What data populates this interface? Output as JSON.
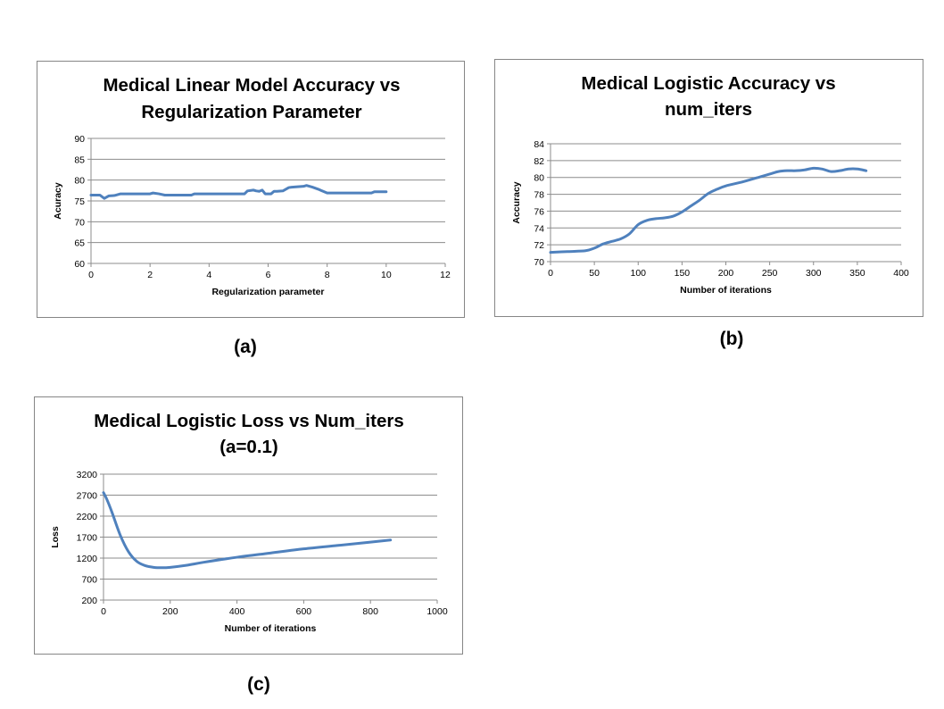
{
  "captions": [
    "(a)",
    "(b)",
    "(c)"
  ],
  "chart_data": [
    {
      "type": "line",
      "title_lines": [
        "Medical Linear Model Accuracy vs",
        "Regularization Parameter"
      ],
      "xlabel": "Regularization  parameter",
      "ylabel": "Acuracy",
      "xlim": [
        0,
        12
      ],
      "ylim": [
        60,
        90
      ],
      "xticks": [
        0,
        2,
        4,
        6,
        8,
        10,
        12
      ],
      "yticks": [
        60,
        65,
        70,
        75,
        80,
        85,
        90
      ],
      "grid": true,
      "legend": "none",
      "color": "#4f81bd",
      "series": [
        {
          "x": [
            0,
            0.3,
            0.45,
            0.6,
            0.8,
            1.0,
            1.5,
            2.0,
            2.1,
            2.3,
            2.5,
            3.0,
            3.4,
            3.5,
            4.0,
            4.5,
            5.0,
            5.2,
            5.3,
            5.5,
            5.6,
            5.7,
            5.8,
            5.9,
            6.0,
            6.1,
            6.2,
            6.3,
            6.5,
            6.7,
            6.8,
            7.0,
            7.2,
            7.3,
            7.5,
            7.7,
            7.8,
            8.0,
            8.5,
            9.0,
            9.5,
            9.6,
            10.0
          ],
          "y": [
            76.4,
            76.4,
            75.6,
            76.2,
            76.3,
            76.7,
            76.7,
            76.7,
            76.9,
            76.7,
            76.4,
            76.4,
            76.4,
            76.7,
            76.7,
            76.7,
            76.7,
            76.7,
            77.4,
            77.6,
            77.4,
            77.3,
            77.6,
            76.7,
            76.7,
            76.7,
            77.3,
            77.3,
            77.4,
            78.2,
            78.3,
            78.4,
            78.5,
            78.7,
            78.3,
            77.8,
            77.5,
            76.9,
            76.9,
            76.9,
            76.9,
            77.2,
            77.2
          ]
        }
      ]
    },
    {
      "type": "line",
      "title_lines": [
        "Medical Logistic Accuracy vs",
        "num_iters"
      ],
      "xlabel": "Number of iterations",
      "ylabel": "Accuracy",
      "xlim": [
        0,
        400
      ],
      "ylim": [
        70,
        84
      ],
      "xticks": [
        0,
        50,
        100,
        150,
        200,
        250,
        300,
        350,
        400
      ],
      "yticks": [
        70,
        72,
        74,
        76,
        78,
        80,
        82,
        84
      ],
      "grid": true,
      "legend": "none",
      "color": "#4f81bd",
      "series": [
        {
          "x": [
            0,
            20,
            40,
            50,
            60,
            70,
            80,
            90,
            100,
            110,
            120,
            130,
            140,
            150,
            160,
            170,
            180,
            190,
            200,
            220,
            240,
            250,
            260,
            270,
            280,
            290,
            300,
            310,
            320,
            330,
            340,
            350,
            360
          ],
          "y": [
            71.1,
            71.2,
            71.3,
            71.6,
            72.1,
            72.4,
            72.7,
            73.3,
            74.4,
            74.9,
            75.1,
            75.2,
            75.4,
            75.9,
            76.6,
            77.3,
            78.1,
            78.6,
            79.0,
            79.5,
            80.1,
            80.4,
            80.7,
            80.8,
            80.8,
            80.9,
            81.1,
            81.0,
            80.7,
            80.8,
            81.0,
            81.0,
            80.8
          ]
        }
      ]
    },
    {
      "type": "line",
      "title_lines": [
        "Medical Logistic Loss vs Num_iters",
        "(a=0.1)"
      ],
      "xlabel": "Number of iterations",
      "ylabel": "Loss",
      "xlim": [
        0,
        1000
      ],
      "ylim": [
        200,
        3200
      ],
      "xticks": [
        0,
        200,
        400,
        600,
        800,
        1000
      ],
      "yticks": [
        200,
        700,
        1200,
        1700,
        2200,
        2700,
        3200
      ],
      "grid": true,
      "legend": "none",
      "color": "#4f81bd",
      "series": [
        {
          "x": [
            0,
            10,
            25,
            50,
            75,
            100,
            125,
            150,
            175,
            200,
            250,
            300,
            400,
            500,
            600,
            700,
            800,
            860
          ],
          "y": [
            2760,
            2600,
            2300,
            1750,
            1350,
            1120,
            1020,
            980,
            970,
            980,
            1030,
            1100,
            1220,
            1320,
            1420,
            1500,
            1580,
            1630
          ]
        }
      ]
    }
  ]
}
